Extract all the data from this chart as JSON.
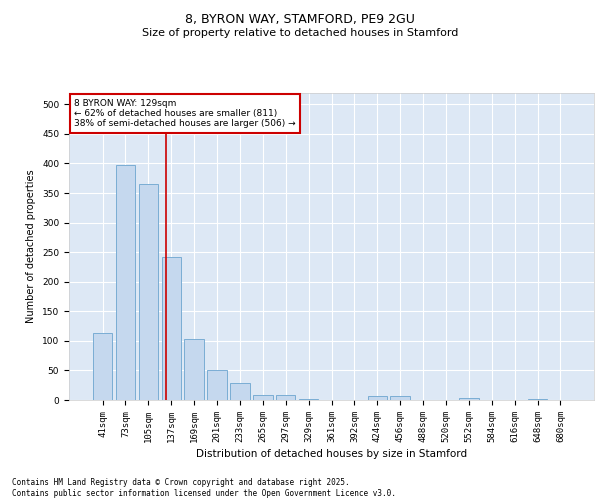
{
  "title1": "8, BYRON WAY, STAMFORD, PE9 2GU",
  "title2": "Size of property relative to detached houses in Stamford",
  "xlabel": "Distribution of detached houses by size in Stamford",
  "ylabel": "Number of detached properties",
  "categories": [
    "41sqm",
    "73sqm",
    "105sqm",
    "137sqm",
    "169sqm",
    "201sqm",
    "233sqm",
    "265sqm",
    "297sqm",
    "329sqm",
    "361sqm",
    "392sqm",
    "424sqm",
    "456sqm",
    "488sqm",
    "520sqm",
    "552sqm",
    "584sqm",
    "616sqm",
    "648sqm",
    "680sqm"
  ],
  "values": [
    113,
    398,
    365,
    242,
    104,
    50,
    29,
    9,
    9,
    1,
    0,
    0,
    6,
    7,
    0,
    0,
    4,
    0,
    0,
    2,
    0
  ],
  "bar_color": "#c5d8ee",
  "bar_edge_color": "#7aadd4",
  "background_color": "#dde8f5",
  "fig_background": "#ffffff",
  "property_line_x": 2.75,
  "annotation_line1": "8 BYRON WAY: 129sqm",
  "annotation_line2": "← 62% of detached houses are smaller (811)",
  "annotation_line3": "38% of semi-detached houses are larger (506) →",
  "annotation_box_color": "#ffffff",
  "annotation_box_edge": "#cc0000",
  "red_line_color": "#cc0000",
  "footer": "Contains HM Land Registry data © Crown copyright and database right 2025.\nContains public sector information licensed under the Open Government Licence v3.0.",
  "ylim": [
    0,
    520
  ],
  "yticks": [
    0,
    50,
    100,
    150,
    200,
    250,
    300,
    350,
    400,
    450,
    500
  ],
  "title1_fontsize": 9,
  "title2_fontsize": 8,
  "xlabel_fontsize": 7.5,
  "ylabel_fontsize": 7,
  "tick_fontsize": 6.5,
  "annotation_fontsize": 6.5,
  "footer_fontsize": 5.5
}
